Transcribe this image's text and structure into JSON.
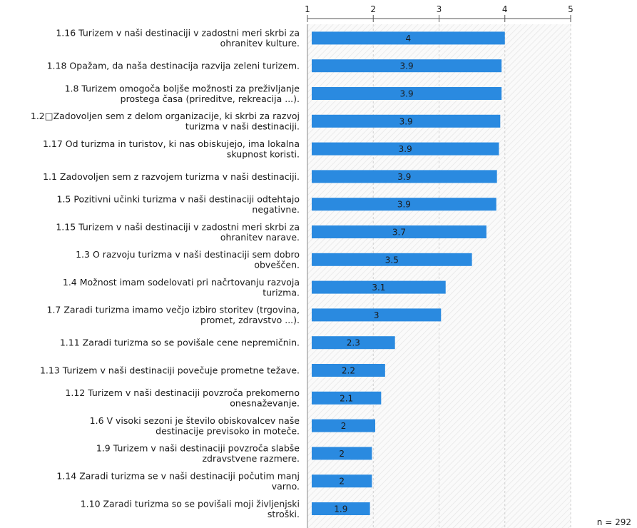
{
  "chart_data": {
    "type": "bar",
    "orientation": "horizontal",
    "xlim": [
      1,
      5
    ],
    "x_ticks": [
      "1",
      "2",
      "3",
      "4",
      "5"
    ],
    "grid": true,
    "bar_color": "#2a8ae0",
    "items": [
      {
        "label_lines": [
          "1.16 Turizem v naši destinaciji v zadostni meri skrbi za",
          "ohranitev kulture."
        ],
        "value": 4.0,
        "value_label": "4"
      },
      {
        "label_lines": [
          "1.18 Opažam, da naša destinacija razvija zeleni turizem."
        ],
        "value": 3.95,
        "value_label": "3.9"
      },
      {
        "label_lines": [
          "1.8 Turizem omogoča boljše možnosti za preživljanje",
          "prostega časa (prireditve, rekreacija ...)."
        ],
        "value": 3.95,
        "value_label": "3.9"
      },
      {
        "label_lines": [
          "1.2□Zadovoljen sem z delom organizacije, ki skrbi za razvoj",
          "turizma v naši destinaciji."
        ],
        "value": 3.93,
        "value_label": "3.9"
      },
      {
        "label_lines": [
          "1.17 Od turizma in turistov, ki nas obiskujejo, ima lokalna",
          "skupnost koristi."
        ],
        "value": 3.91,
        "value_label": "3.9"
      },
      {
        "label_lines": [
          "1.1 Zadovoljen sem z razvojem turizma v naši destinaciji."
        ],
        "value": 3.88,
        "value_label": "3.9"
      },
      {
        "label_lines": [
          "1.5 Pozitivni učinki turizma v naši destinaciji odtehtajo",
          "negativne."
        ],
        "value": 3.87,
        "value_label": "3.9"
      },
      {
        "label_lines": [
          "1.15 Turizem v naši destinaciji v zadostni meri skrbi za",
          "ohranitev narave."
        ],
        "value": 3.72,
        "value_label": "3.7"
      },
      {
        "label_lines": [
          "1.3 O razvoju turizma v naši destinaciji sem dobro",
          "obveščen."
        ],
        "value": 3.5,
        "value_label": "3.5"
      },
      {
        "label_lines": [
          "1.4 Možnost imam sodelovati pri načrtovanju razvoja",
          "turizma."
        ],
        "value": 3.1,
        "value_label": "3.1"
      },
      {
        "label_lines": [
          "1.7 Zaradi turizma imamo večjo izbiro storitev (trgovina,",
          "promet, zdravstvo ...)."
        ],
        "value": 3.03,
        "value_label": "3"
      },
      {
        "label_lines": [
          "1.11 Zaradi turizma so se povišale cene nepremičnin."
        ],
        "value": 2.33,
        "value_label": "2.3"
      },
      {
        "label_lines": [
          "1.13 Turizem v naši destinaciji povečuje prometne težave."
        ],
        "value": 2.18,
        "value_label": "2.2"
      },
      {
        "label_lines": [
          "1.12 Turizem v naši destinaciji povzroča prekomerno",
          "onesnaževanje."
        ],
        "value": 2.12,
        "value_label": "2.1"
      },
      {
        "label_lines": [
          "1.6 V visoki sezoni je število obiskovalcev naše",
          "destinacije previsoko in moteče."
        ],
        "value": 2.03,
        "value_label": "2"
      },
      {
        "label_lines": [
          "1.9 Turizem v naši destinaciji povzroča slabše",
          "zdravstvene razmere."
        ],
        "value": 1.98,
        "value_label": "2"
      },
      {
        "label_lines": [
          "1.14 Zaradi turizma se v naši destinaciji počutim manj",
          "varno."
        ],
        "value": 1.98,
        "value_label": "2"
      },
      {
        "label_lines": [
          "1.10 Zaradi turizma so se povišali moji življenjski",
          "stroški."
        ],
        "value": 1.95,
        "value_label": "1.9"
      }
    ],
    "n_label": "n = 292"
  }
}
